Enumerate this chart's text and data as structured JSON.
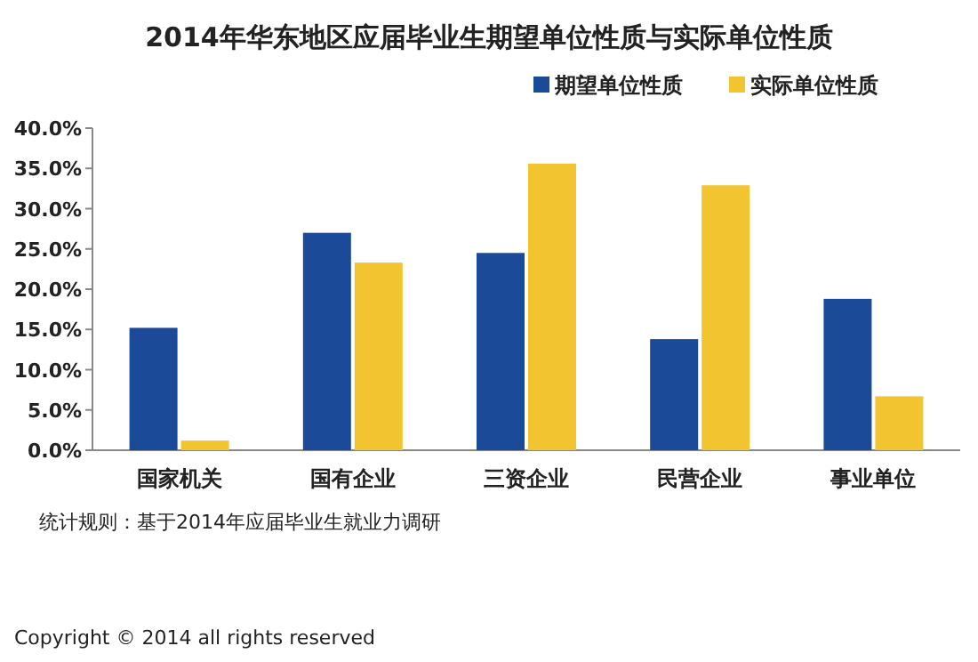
{
  "chart_data": {
    "type": "bar",
    "title": "2014年华东地区应届毕业生期望单位性质与实际单位性质",
    "categories": [
      "国家机关",
      "国有企业",
      "三资企业",
      "民营企业",
      "事业单位"
    ],
    "series": [
      {
        "name": "期望单位性质",
        "color": "#1b4a99",
        "values": [
          15.2,
          27.0,
          24.5,
          13.8,
          18.8
        ]
      },
      {
        "name": "实际单位性质",
        "color": "#f2c530",
        "values": [
          1.2,
          23.3,
          35.6,
          32.9,
          6.7
        ]
      }
    ],
    "ylim": [
      0,
      40
    ],
    "yticks": [
      {
        "value": 0,
        "label": "0.0%"
      },
      {
        "value": 5,
        "label": "5.0%"
      },
      {
        "value": 10,
        "label": "10.0%"
      },
      {
        "value": 15,
        "label": "15.0%"
      },
      {
        "value": 20,
        "label": "20.0%"
      },
      {
        "value": 25,
        "label": "25.0%"
      },
      {
        "value": 30,
        "label": "30.0%"
      },
      {
        "value": 35,
        "label": "35.0%"
      },
      {
        "value": 40,
        "label": "40.0%"
      }
    ],
    "grid": false,
    "legend": "top right",
    "annotations": [
      "统计规则：基于2014年应届毕业生就业力调研",
      "Copyright © 2014 all rights reserved"
    ]
  }
}
